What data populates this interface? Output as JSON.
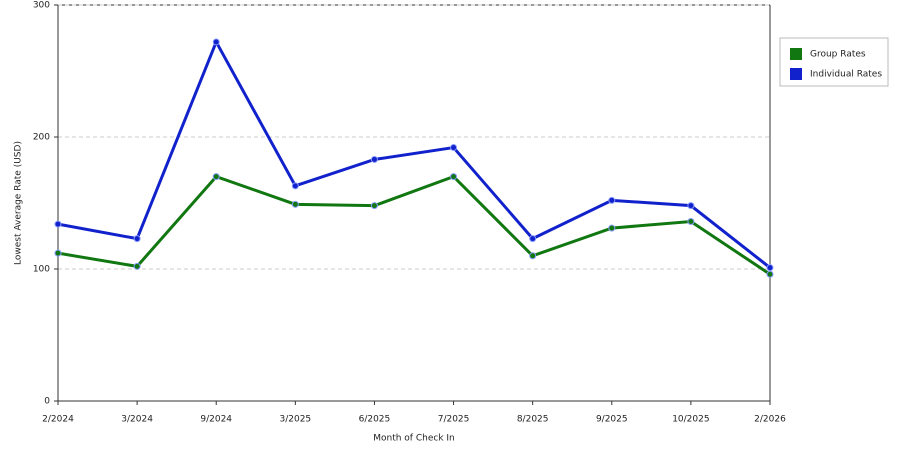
{
  "chart_data": {
    "type": "line",
    "x_label": "Month of Check In",
    "y_label": "Lowest Average Rate (USD)",
    "categories": [
      "2/2024",
      "3/2024",
      "9/2024",
      "3/2025",
      "6/2025",
      "7/2025",
      "8/2025",
      "9/2025",
      "10/2025",
      "2/2026"
    ],
    "series": [
      {
        "name": "Group Rates",
        "color": "#117711",
        "values": [
          112,
          102,
          170,
          149,
          148,
          170,
          110,
          131,
          136,
          96
        ]
      },
      {
        "name": "Individual Rates",
        "color": "#1122cc",
        "values": [
          134,
          123,
          272,
          163,
          183,
          192,
          123,
          152,
          148,
          101
        ]
      }
    ],
    "ylim": [
      0,
      300
    ],
    "yticks": [
      0,
      100,
      200,
      300
    ],
    "grid": true,
    "legend": "right"
  }
}
